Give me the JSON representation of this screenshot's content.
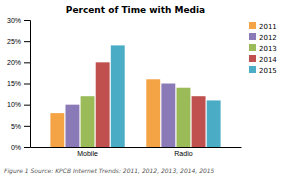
{
  "chart_data": {
    "type": "bar",
    "title": "Percent of Time with Media",
    "categories": [
      "Mobile",
      "Radio"
    ],
    "series": [
      {
        "name": "2011",
        "color": "#f4a345",
        "values": [
          0.08,
          0.16
        ]
      },
      {
        "name": "2012",
        "color": "#8b7ab8",
        "values": [
          0.1,
          0.15
        ]
      },
      {
        "name": "2013",
        "color": "#9bbb59",
        "values": [
          0.12,
          0.14
        ]
      },
      {
        "name": "2014",
        "color": "#c0504d",
        "values": [
          0.2,
          0.12
        ]
      },
      {
        "name": "2015",
        "color": "#4bacc6",
        "values": [
          0.24,
          0.11
        ]
      }
    ],
    "ylim": [
      0,
      0.3
    ],
    "yticks": [
      {
        "value": 0,
        "label": "0%"
      },
      {
        "value": 0.05,
        "label": "5%"
      },
      {
        "value": 0.1,
        "label": "10%"
      },
      {
        "value": 0.15,
        "label": "15%"
      },
      {
        "value": 0.2,
        "label": "20%"
      },
      {
        "value": 0.25,
        "label": "25%"
      },
      {
        "value": 0.3,
        "label": "30%"
      }
    ],
    "caption": "Figure 1 Source: KPCB Internet Trends: 2011, 2012, 2013, 2014, 2015",
    "legend": "right",
    "grid": false
  }
}
